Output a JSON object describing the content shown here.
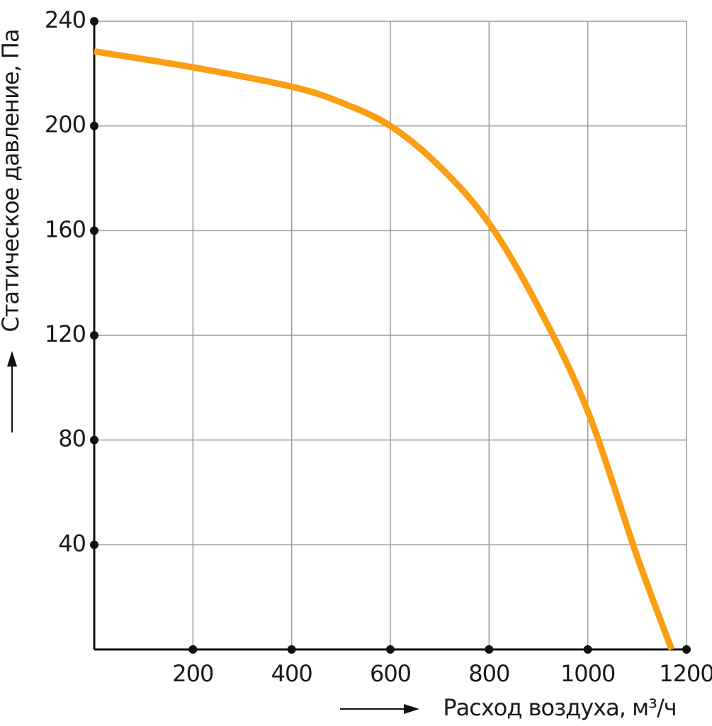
{
  "chart_data": {
    "type": "line",
    "x_label": "Расход воздуха, м³/ч",
    "y_label": "Статическое давление, Па",
    "x": [
      0,
      200,
      400,
      500,
      600,
      700,
      800,
      900,
      1000,
      1100,
      1170
    ],
    "series": [
      {
        "color": "#fa9e14",
        "values": [
          228.5,
          222.4,
          215,
          209,
          200,
          184.5,
          162.8,
          130.8,
          91,
          35.5,
          0
        ]
      }
    ],
    "xlim": [
      0,
      1200
    ],
    "ylim": [
      0,
      240
    ],
    "xticks": [
      200,
      400,
      600,
      800,
      1000,
      1200
    ],
    "yticks": [
      40,
      80,
      120,
      160,
      200,
      240
    ],
    "grid": true
  }
}
